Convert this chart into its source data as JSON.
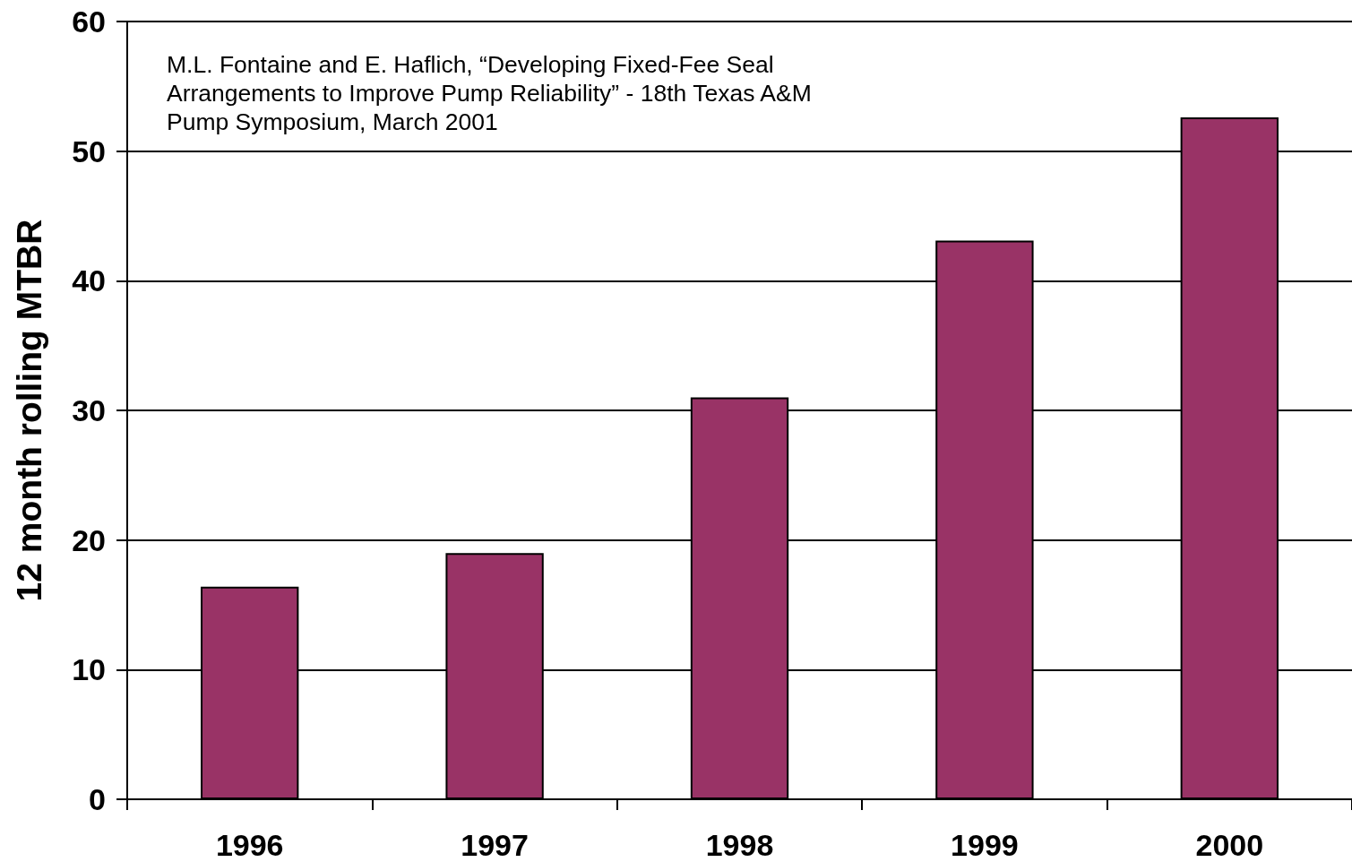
{
  "chart_data": {
    "type": "bar",
    "categories": [
      "1996",
      "1997",
      "1998",
      "1999",
      "2000"
    ],
    "values": [
      16.4,
      19.0,
      31.0,
      43.1,
      52.6
    ],
    "color": "#993366",
    "ylabel": "12 month rolling MTBR",
    "annotations": [
      "M.L. Fontaine and E. Haflich, “Developing Fixed-Fee Seal\nArrangements to Improve Pump Reliability” - 18th Texas A&M\nPump Symposium, March 2001"
    ],
    "ylim": [
      0,
      60
    ],
    "yticks": [
      0,
      10,
      20,
      30,
      40,
      50,
      60
    ],
    "grid": "y"
  }
}
